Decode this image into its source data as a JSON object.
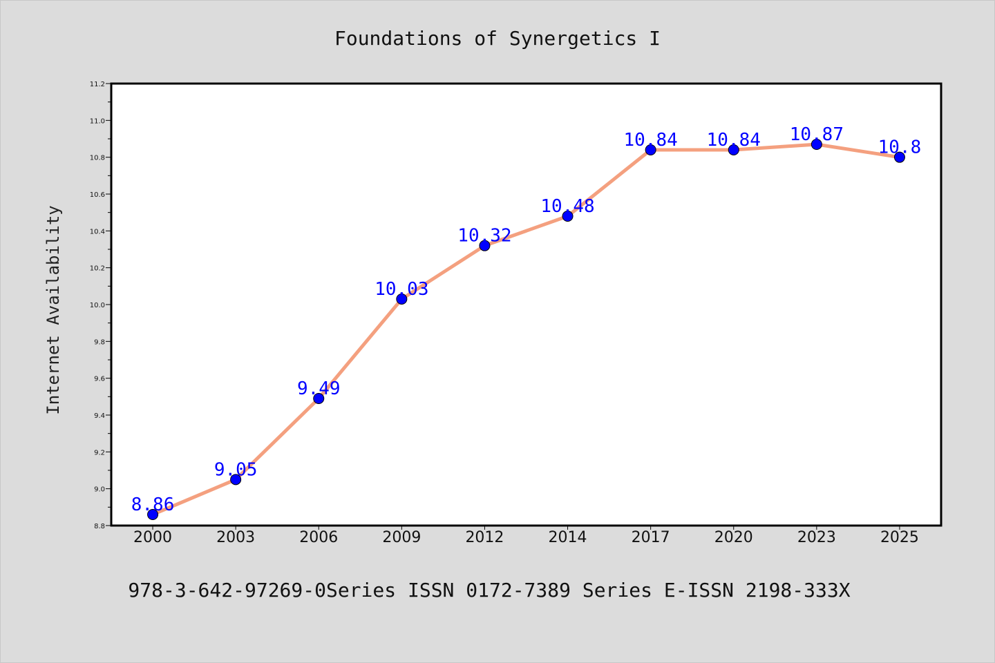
{
  "chart_data": {
    "type": "line",
    "title": "Foundations of Synergetics I",
    "ylabel": "Internet Availability",
    "xlabel": "",
    "footer": "978-3-642-97269-0Series ISSN 0172-7389 Series E-ISSN 2198-333X",
    "categories": [
      "2000",
      "2003",
      "2006",
      "2009",
      "2012",
      "2014",
      "2017",
      "2020",
      "2023",
      "2025"
    ],
    "series": [
      {
        "values": [
          8.86,
          9.05,
          9.49,
          10.03,
          10.32,
          10.48,
          10.84,
          10.84,
          10.87,
          10.8
        ],
        "data_labels": [
          "8.86",
          "9.05",
          "9.49",
          "10.03",
          "10.32",
          "10.48",
          "10.84",
          "10.84",
          "10.87",
          "10.8"
        ]
      }
    ],
    "ylim": [
      8.8,
      11.2
    ],
    "yticks": [
      8.8,
      9.0,
      9.2,
      9.4,
      9.6,
      9.8,
      10.0,
      10.2,
      10.4,
      10.6,
      10.8,
      11.0,
      11.2
    ],
    "ytick_labels": [
      "8.8",
      "9.0",
      "9.2",
      "9.4",
      "9.6",
      "9.8",
      "10.0",
      "10.2",
      "10.4",
      "10.6",
      "10.8",
      "11.0",
      "11.2"
    ],
    "grid": false,
    "legend": "none",
    "colors": {
      "line": "#f4a07f",
      "marker": "#0000ff",
      "data_label": "#0000ff",
      "background": "#dcdcdc",
      "plot_background": "#ffffff"
    }
  }
}
